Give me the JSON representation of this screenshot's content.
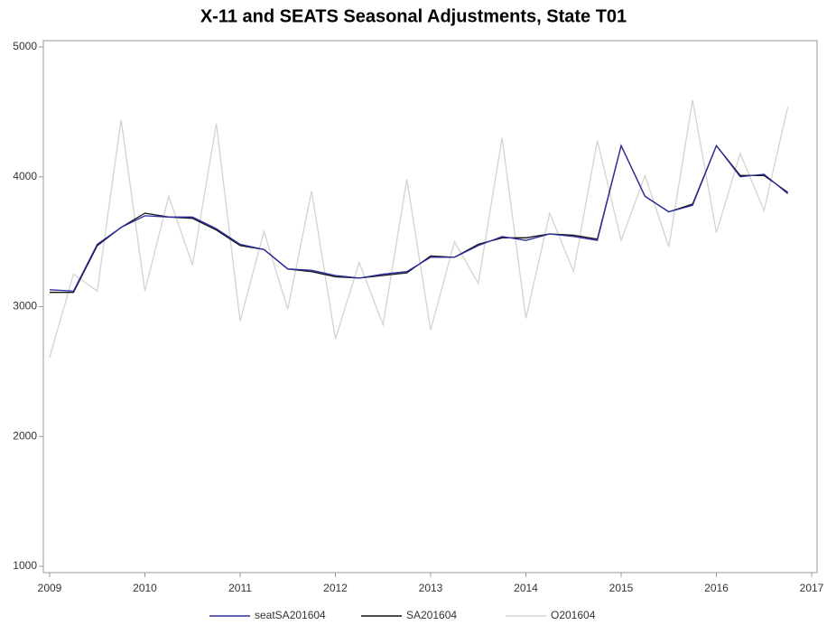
{
  "chart_data": {
    "type": "line",
    "title": "X-11 and SEATS Seasonal Adjustments, State T01",
    "x": [
      2009,
      2009.25,
      2009.5,
      2009.75,
      2010,
      2010.25,
      2010.5,
      2010.75,
      2011,
      2011.25,
      2011.5,
      2011.75,
      2012,
      2012.25,
      2012.5,
      2012.75,
      2013,
      2013.25,
      2013.5,
      2013.75,
      2014,
      2014.25,
      2014.5,
      2014.75,
      2015,
      2015.25,
      2015.5,
      2015.75,
      2016,
      2016.25,
      2016.5,
      2016.75
    ],
    "series": [
      {
        "name": "seatSA201604",
        "color": "#2b2ba3",
        "values": [
          3130,
          3120,
          3480,
          3610,
          3700,
          3690,
          3690,
          3600,
          3480,
          3440,
          3290,
          3280,
          3240,
          3220,
          3250,
          3270,
          3380,
          3380,
          3470,
          3540,
          3510,
          3560,
          3540,
          3510,
          4240,
          3850,
          3730,
          3780,
          4240,
          4000,
          4020,
          3870
        ]
      },
      {
        "name": "SA201604",
        "color": "#111111",
        "values": [
          3110,
          3110,
          3470,
          3610,
          3720,
          3690,
          3680,
          3590,
          3470,
          3440,
          3290,
          3270,
          3230,
          3220,
          3240,
          3260,
          3390,
          3380,
          3480,
          3530,
          3530,
          3560,
          3550,
          3520,
          4240,
          3850,
          3730,
          3790,
          4240,
          4010,
          4010,
          3880
        ]
      },
      {
        "name": "O201604",
        "color": "#d3d3d3",
        "values": [
          2610,
          3250,
          3120,
          4440,
          3120,
          3850,
          3320,
          4410,
          2890,
          3580,
          2980,
          3890,
          2750,
          3340,
          2860,
          3980,
          2820,
          3500,
          3180,
          4300,
          2910,
          3720,
          3270,
          4280,
          3510,
          4010,
          3460,
          4590,
          3570,
          4180,
          3740,
          4540
        ]
      }
    ],
    "xlim": [
      2009,
      2017
    ],
    "xticks": [
      2009,
      2010,
      2011,
      2012,
      2013,
      2014,
      2015,
      2016,
      2017
    ],
    "ylim": [
      1000,
      5000
    ],
    "yticks": [
      1000,
      2000,
      3000,
      4000,
      5000
    ]
  }
}
